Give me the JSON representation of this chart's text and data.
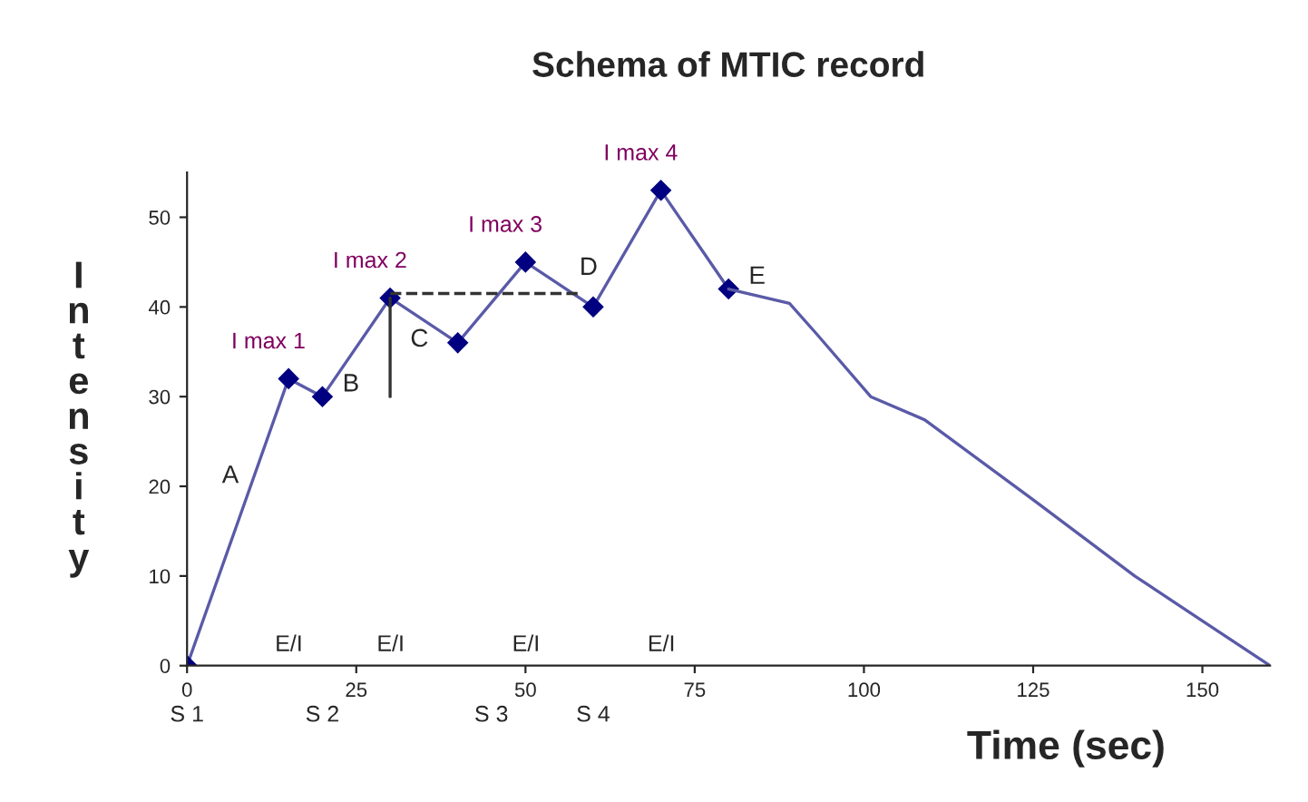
{
  "chart_data": {
    "type": "line",
    "title": "Schema of MTIC record",
    "xlabel": "Time (sec)",
    "ylabel": "Intensity",
    "series": [
      {
        "color": "#5a5aa8",
        "marker": "diamond",
        "x": [
          0,
          15,
          20,
          30,
          40,
          50,
          60,
          70,
          80
        ],
        "values": [
          0,
          32,
          30,
          41,
          36,
          45,
          40,
          53,
          42
        ]
      },
      {
        "color": "#5a5aa8",
        "marker": "none",
        "x": [
          80,
          89,
          93,
          101,
          109,
          125,
          140,
          150,
          160
        ],
        "values": [
          42,
          40.4,
          37,
          30,
          27.4,
          18.5,
          10,
          5,
          0
        ]
      },
      {
        "color": "#333333",
        "marker": "none",
        "line_style": "dashed",
        "x": [
          30,
          58
        ],
        "values": [
          41.5,
          41.5
        ]
      },
      {
        "color": "#333333",
        "marker": "none",
        "x": [
          30,
          30
        ],
        "values": [
          41,
          30
        ]
      }
    ],
    "xlim": [
      0,
      160
    ],
    "ylim": [
      0,
      55
    ],
    "xticks": [
      0,
      25,
      50,
      75,
      100,
      125,
      150
    ],
    "yticks": [
      0,
      10,
      20,
      30,
      40,
      50
    ],
    "grid": false,
    "legend": false,
    "annotations": [
      {
        "text": "I max 1",
        "x": 15,
        "y": 32
      },
      {
        "text": "I max 2",
        "x": 30,
        "y": 41
      },
      {
        "text": "I max 3",
        "x": 50,
        "y": 45
      },
      {
        "text": "I max 4",
        "x": 70,
        "y": 53
      },
      "A",
      {
        "text": "B",
        "x": 20,
        "y": 30
      },
      {
        "text": "C",
        "x": 30,
        "y": 35
      },
      {
        "text": "D",
        "x": 55,
        "y": 43
      },
      {
        "text": "E",
        "x": 80,
        "y": 42
      },
      "E/I",
      "E/I",
      "E/I",
      "E/I",
      "S 1",
      "S 2",
      "S 3",
      "S 4"
    ]
  }
}
